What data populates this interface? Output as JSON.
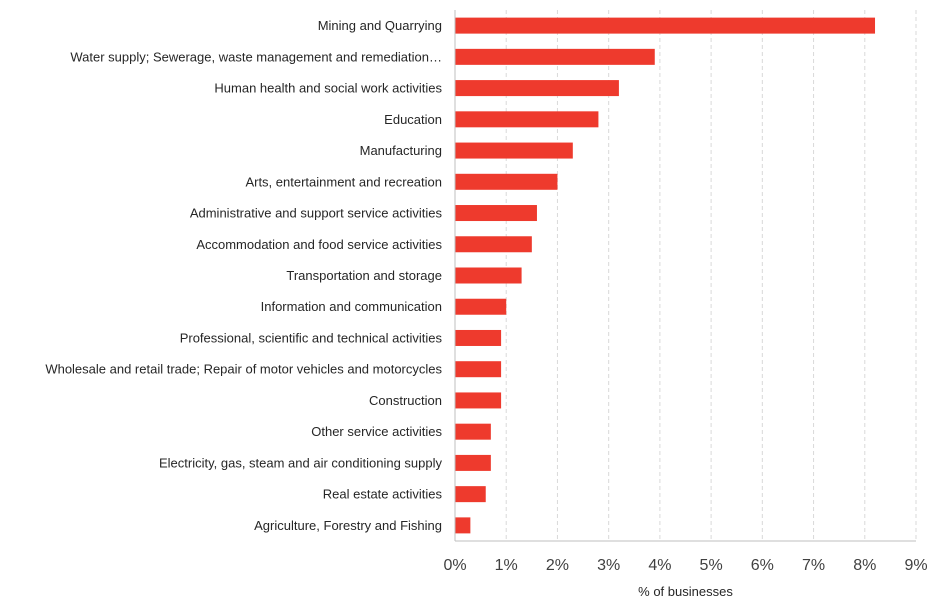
{
  "chart_data": {
    "type": "bar",
    "orientation": "horizontal",
    "categories": [
      "Mining and Quarrying",
      "Water supply; Sewerage, waste management and remediation…",
      "Human health and social work activities",
      "Education",
      "Manufacturing",
      "Arts, entertainment and recreation",
      "Administrative and support service activities",
      "Accommodation and food service activities",
      "Transportation and storage",
      "Information and communication",
      "Professional, scientific and technical activities",
      "Wholesale and retail trade; Repair of motor vehicles and motorcycles",
      "Construction",
      "Other service activities",
      "Electricity, gas, steam and air conditioning supply",
      "Real estate activities",
      "Agriculture, Forestry and Fishing"
    ],
    "values": [
      8.2,
      3.9,
      3.2,
      2.8,
      2.3,
      2.0,
      1.6,
      1.5,
      1.3,
      1.0,
      0.9,
      0.9,
      0.9,
      0.7,
      0.7,
      0.6,
      0.3
    ],
    "xlabel": "% of businesses",
    "ylabel": "",
    "title": "",
    "xlim": [
      0,
      9
    ],
    "xticks": [
      "0%",
      "1%",
      "2%",
      "3%",
      "4%",
      "5%",
      "6%",
      "7%",
      "8%",
      "9%"
    ],
    "grid": "vertical dashed",
    "bar_color": "#ee3a2d",
    "grid_color": "#d9d9d9",
    "axis_color": "#bfbfbf"
  }
}
